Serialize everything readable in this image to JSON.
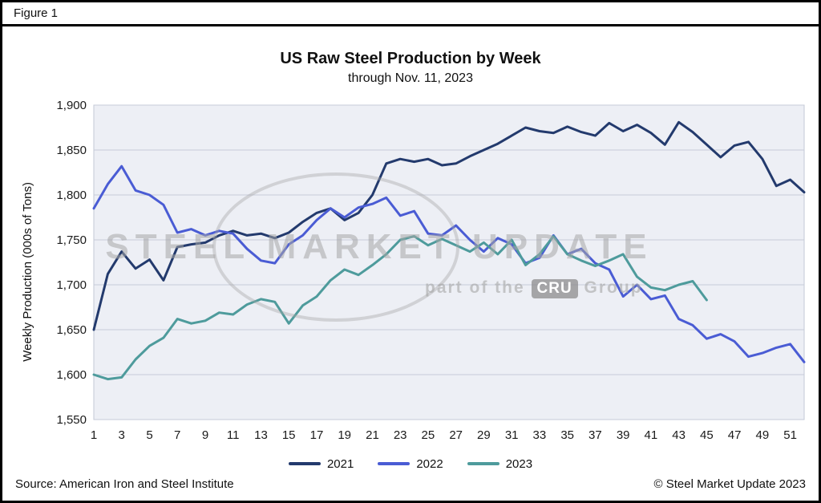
{
  "header": {
    "figure_label": "Figure 1"
  },
  "chart_data": {
    "type": "line",
    "title": "US Raw Steel Production by Week",
    "subtitle": "through Nov. 11, 2023",
    "ylabel": "Weekly Production (000s of Tons)",
    "xlabel": "",
    "ylim": [
      1550,
      1900
    ],
    "ytick_step": 50,
    "x_max": 52,
    "xticks": [
      1,
      3,
      5,
      7,
      9,
      11,
      13,
      15,
      17,
      19,
      21,
      23,
      25,
      27,
      29,
      31,
      33,
      35,
      37,
      39,
      41,
      43,
      45,
      47,
      49,
      51
    ],
    "grid": true,
    "legend_position": "bottom",
    "plot_bg": "#edeff5",
    "plot_border": "#c3c8d6",
    "grid_color": "#c6cbd9",
    "series": [
      {
        "name": "2021",
        "color": "#233a6d",
        "values": [
          1650,
          1712,
          1737,
          1718,
          1728,
          1705,
          1742,
          1745,
          1747,
          1755,
          1760,
          1755,
          1757,
          1752,
          1758,
          1770,
          1780,
          1785,
          1772,
          1780,
          1800,
          1835,
          1840,
          1837,
          1840,
          1833,
          1835,
          1843,
          1850,
          1857,
          1866,
          1875,
          1871,
          1869,
          1876,
          1870,
          1866,
          1880,
          1871,
          1878,
          1869,
          1856,
          1881,
          1870,
          1856,
          1842,
          1855,
          1859,
          1840,
          1810,
          1817,
          1803
        ]
      },
      {
        "name": "2022",
        "color": "#4a5cd4",
        "values": [
          1785,
          1812,
          1832,
          1805,
          1800,
          1789,
          1758,
          1762,
          1755,
          1760,
          1757,
          1740,
          1727,
          1724,
          1745,
          1755,
          1772,
          1785,
          1775,
          1786,
          1790,
          1797,
          1777,
          1782,
          1757,
          1755,
          1766,
          1750,
          1737,
          1752,
          1745,
          1724,
          1730,
          1755,
          1734,
          1740,
          1724,
          1717,
          1687,
          1700,
          1684,
          1688,
          1662,
          1655,
          1640,
          1645,
          1637,
          1620,
          1624,
          1630,
          1634,
          1614
        ]
      },
      {
        "name": "2023",
        "color": "#4e9b9c",
        "values": [
          1600,
          1595,
          1597,
          1617,
          1632,
          1641,
          1662,
          1657,
          1660,
          1669,
          1667,
          1678,
          1684,
          1681,
          1657,
          1677,
          1687,
          1705,
          1717,
          1711,
          1722,
          1734,
          1750,
          1754,
          1744,
          1751,
          1744,
          1737,
          1747,
          1734,
          1750,
          1722,
          1734,
          1754,
          1734,
          1727,
          1721,
          1727,
          1734,
          1709,
          1697,
          1694,
          1700,
          1704,
          1683
        ]
      }
    ]
  },
  "watermark": {
    "main": "STEEL MARKET UPDATE",
    "sub_prefix": "part of the",
    "sub_badge": "CRU",
    "sub_suffix": "Group"
  },
  "footer": {
    "source": "Source: American Iron and Steel Institute",
    "copyright": "© Steel Market Update 2023"
  }
}
